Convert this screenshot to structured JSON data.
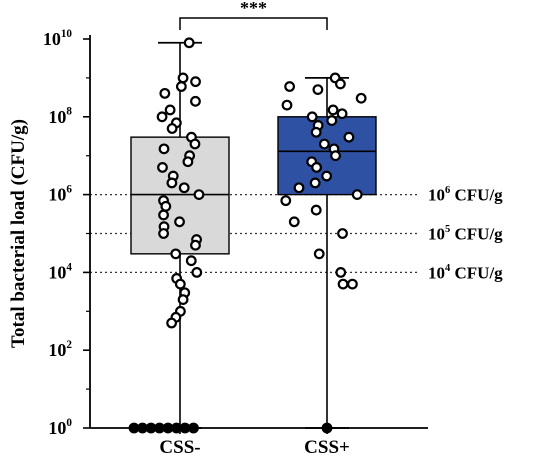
{
  "chart_data": {
    "type": "box",
    "ylabel": "Total bacterial load  (CFU/g)",
    "yscale": "log",
    "ylim": [
      1,
      10000000000
    ],
    "y_ticks": [
      {
        "base": "10",
        "exp": "0"
      },
      {
        "base": "10",
        "exp": "2"
      },
      {
        "base": "10",
        "exp": "4"
      },
      {
        "base": "10",
        "exp": "6"
      },
      {
        "base": "10",
        "exp": "8"
      },
      {
        "base": "10",
        "exp": "10"
      }
    ],
    "categories": [
      "CSS-",
      "CSS+"
    ],
    "groups": [
      {
        "name": "CSS-",
        "fill": "#d9d9d9",
        "box": {
          "min": 1,
          "q1": 30000,
          "median": 1000000,
          "q3": 30000000,
          "max": 8000000000
        },
        "points": [
          8000000000,
          1000000000,
          800000000,
          600000000,
          400000000,
          250000000,
          150000000,
          100000000,
          70000000,
          50000000,
          30000000,
          20000000,
          15000000,
          10000000,
          7000000,
          5000000,
          3000000,
          2000000,
          1500000,
          1000000,
          700000,
          500000,
          300000,
          200000,
          150000,
          100000,
          70000,
          50000,
          30000,
          20000,
          10000,
          7000,
          5000,
          3000,
          2000,
          1000,
          700,
          500,
          1,
          1,
          1,
          1,
          1,
          1,
          1,
          1
        ]
      },
      {
        "name": "CSS+",
        "fill": "#2f51a3",
        "box": {
          "min": 1,
          "q1": 1000000,
          "median": 13000000,
          "q3": 100000000,
          "max": 1000000000
        },
        "points": [
          1000000000,
          700000000,
          600000000,
          500000000,
          300000000,
          200000000,
          150000000,
          120000000,
          100000000,
          80000000,
          60000000,
          40000000,
          30000000,
          20000000,
          15000000,
          10000000,
          7000000,
          5000000,
          3000000,
          2000000,
          1500000,
          1000000,
          700000,
          400000,
          200000,
          100000,
          30000,
          10000,
          5000,
          5000,
          1
        ]
      }
    ],
    "reference_lines": [
      {
        "value": 1000000,
        "base": "10",
        "exp": "6",
        "unit": " CFU/g"
      },
      {
        "value": 100000,
        "base": "10",
        "exp": "5",
        "unit": " CFU/g"
      },
      {
        "value": 10000,
        "base": "10",
        "exp": "4",
        "unit": " CFU/g"
      }
    ],
    "significance": "***"
  }
}
